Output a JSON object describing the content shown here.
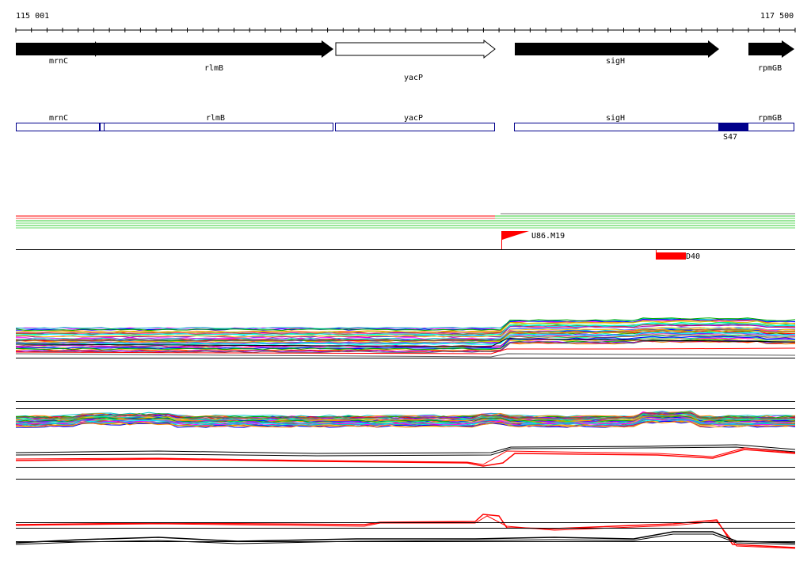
{
  "ruler": {
    "start_label": "115 001",
    "end_label": "117 500"
  },
  "genes": [
    {
      "label": "mrnC",
      "strand": "forward",
      "filled": true
    },
    {
      "label": "rlmB",
      "strand": "forward",
      "filled": true
    },
    {
      "label": "yacP",
      "strand": "forward",
      "filled": false
    },
    {
      "label": "sigH",
      "strand": "forward",
      "filled": true
    },
    {
      "label": "rpmGB",
      "strand": "forward",
      "filled": true
    }
  ],
  "segments": [
    {
      "label": "mrnC"
    },
    {
      "label": "rlmB"
    },
    {
      "label": "yacP"
    },
    {
      "label": "sigH"
    },
    {
      "label": "rpmGB"
    }
  ],
  "feature_block": {
    "label": "S47",
    "color": "#00008b"
  },
  "markers": [
    {
      "label": "U86.M19",
      "color": "#ff0000",
      "shape": "flag"
    },
    {
      "label": "D40",
      "color": "#ff0000",
      "shape": "bar"
    }
  ],
  "colors": {
    "gene_fill": "#000000",
    "segment_outline": "#00008b",
    "highlight": "#ff0000",
    "track_line": "#000000"
  }
}
